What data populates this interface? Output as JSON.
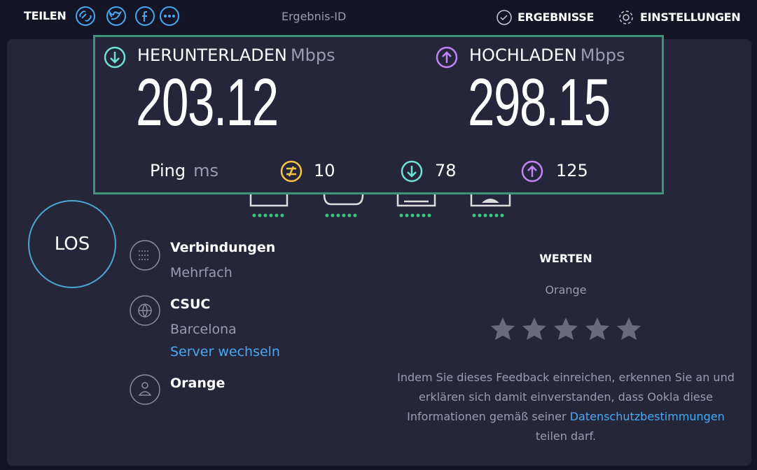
{
  "header": {
    "share_label": "TEILEN",
    "result_id_label": "Ergebnis-ID",
    "results_button": "ERGEBNISSE",
    "settings_button": "EINSTELLUNGEN"
  },
  "download": {
    "label": "HERUNTERLADEN",
    "unit": "Mbps",
    "value": 203.12
  },
  "upload": {
    "label": "HOCHLADEN",
    "unit": "Mbps",
    "value": 298.15
  },
  "ping": {
    "label": "Ping",
    "unit": "ms",
    "idle": 10,
    "download": 78,
    "upload": 125
  },
  "go_button": "LOS",
  "connections": {
    "label": "Verbindungen",
    "value": "Mehrfach"
  },
  "server": {
    "name": "CSUC",
    "location": "Barcelona",
    "change_link": "Server wechseln"
  },
  "provider": {
    "name": "Orange"
  },
  "rating": {
    "title": "WERTEN",
    "provider": "Orange",
    "disclaimer_before": "Indem Sie dieses Feedback einreichen, erkennen Sie an und erklären sich damit einverstanden, dass Ookla diese Informationen gemäß seiner",
    "privacy_link": "Datenschutzbestimmungen",
    "disclaimer_after": "teilen darf."
  }
}
